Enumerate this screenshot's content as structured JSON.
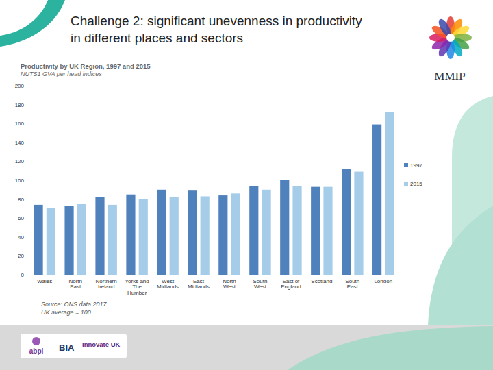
{
  "slide": {
    "heading": "Challenge 2: significant unevenness in productivity in different places and sectors",
    "logo_text": "MMIP",
    "footer_logos": [
      "abpi",
      "BIA",
      "Innovate UK"
    ]
  },
  "chart_data": {
    "type": "bar",
    "title": "Productivity by UK Region, 1997 and 2015",
    "subtitle": "NUTS1 GVA per head indices",
    "annotations": [
      "Source: ONS data 2017",
      "UK average = 100"
    ],
    "categories": [
      "Wales",
      "North East",
      "Northern Ireland",
      "Yorks and The Humber",
      "West Midlands",
      "East Midlands",
      "North West",
      "South West",
      "East of England",
      "Scotland",
      "South East",
      "London"
    ],
    "series": [
      {
        "name": "1997",
        "color": "#4f81bd",
        "values": [
          74,
          73,
          82,
          85,
          90,
          89,
          84,
          94,
          100,
          93,
          112,
          159
        ]
      },
      {
        "name": "2015",
        "color": "#a5cce8",
        "values": [
          71,
          75,
          74,
          80,
          82,
          83,
          86,
          90,
          94,
          93,
          109,
          172
        ]
      }
    ],
    "ylim": [
      0,
      200
    ],
    "yticks": [
      0,
      20,
      40,
      60,
      80,
      100,
      120,
      140,
      160,
      180,
      200
    ],
    "grid": false,
    "legend": "right"
  }
}
